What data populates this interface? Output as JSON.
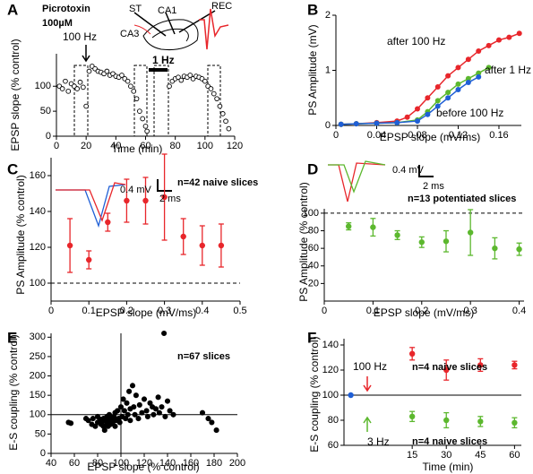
{
  "chart_data": [
    {
      "type": "scatter",
      "label": "A",
      "xlabel": "Time (min)",
      "ylabel": "EPSP slope (% control)",
      "annotations": [
        "Picrotoxin",
        "100µM",
        "100 Hz",
        "1 Hz",
        "ST",
        "CA1",
        "CA3",
        "REC"
      ],
      "xlim": [
        0,
        120
      ],
      "ylim": [
        0,
        165
      ],
      "xticks": [
        0,
        20,
        40,
        60,
        80,
        100,
        120
      ],
      "yticks": [
        0,
        50,
        100
      ],
      "filled": false,
      "series": [
        {
          "color": "#000000",
          "x": [
            2,
            4,
            6,
            8,
            10,
            12,
            14,
            16,
            18,
            20,
            22,
            24,
            26,
            28,
            30,
            32,
            34,
            36,
            38,
            40,
            42,
            44,
            46,
            48,
            50,
            52,
            54,
            56,
            58,
            60,
            61,
            76,
            78,
            80,
            82,
            84,
            86,
            88,
            90,
            92,
            94,
            96,
            98,
            100,
            102,
            104,
            106,
            108,
            110,
            112,
            114,
            116
          ],
          "values": [
            100,
            95,
            110,
            90,
            105,
            100,
            95,
            108,
            98,
            60,
            130,
            140,
            135,
            130,
            128,
            125,
            130,
            122,
            125,
            120,
            118,
            122,
            115,
            110,
            100,
            90,
            75,
            50,
            35,
            20,
            10,
            100,
            110,
            115,
            118,
            112,
            120,
            118,
            122,
            115,
            120,
            118,
            115,
            110,
            100,
            95,
            85,
            75,
            60,
            45,
            30,
            15
          ]
        }
      ]
    },
    {
      "type": "line",
      "label": "B",
      "xlabel": "EPSP slope (mV/ms)",
      "ylabel": "PS Amplitude (mV)",
      "xlim": [
        0,
        0.182
      ],
      "ylim": [
        0,
        2
      ],
      "xticks": [
        0,
        0.04,
        0.08,
        0.12,
        0.16
      ],
      "yticks": [
        0,
        1,
        2
      ],
      "series": [
        {
          "name": "after 100 Hz",
          "color": "#e8262b",
          "x": [
            0.005,
            0.02,
            0.04,
            0.06,
            0.07,
            0.08,
            0.09,
            0.1,
            0.11,
            0.12,
            0.13,
            0.14,
            0.15,
            0.16,
            0.17,
            0.18
          ],
          "values": [
            0.02,
            0.03,
            0.05,
            0.08,
            0.15,
            0.3,
            0.5,
            0.7,
            0.9,
            1.05,
            1.2,
            1.35,
            1.45,
            1.55,
            1.6,
            1.67
          ]
        },
        {
          "name": "after 1 Hz",
          "color": "#5cb82e",
          "x": [
            0.005,
            0.02,
            0.04,
            0.06,
            0.08,
            0.09,
            0.1,
            0.11,
            0.12,
            0.13,
            0.14,
            0.15
          ],
          "values": [
            0.02,
            0.03,
            0.04,
            0.05,
            0.1,
            0.25,
            0.45,
            0.6,
            0.75,
            0.85,
            0.95,
            1.05
          ]
        },
        {
          "name": "before 100 Hz",
          "color": "#1f5fd6",
          "x": [
            0.005,
            0.02,
            0.04,
            0.06,
            0.08,
            0.09,
            0.1,
            0.11,
            0.12,
            0.13,
            0.14
          ],
          "values": [
            0.02,
            0.03,
            0.04,
            0.05,
            0.08,
            0.2,
            0.35,
            0.5,
            0.65,
            0.78,
            0.88
          ]
        }
      ]
    },
    {
      "type": "errorbar",
      "label": "C",
      "xlabel": "EPSP slope (mV/ms)",
      "ylabel": "PS Amplitude (% control)",
      "annotations": [
        "0.4 mV",
        "2 ms",
        "n=42 naive slices"
      ],
      "xlim": [
        0,
        0.5
      ],
      "ylim": [
        90,
        170
      ],
      "xticks": [
        0,
        0.1,
        0.2,
        0.3,
        0.4,
        0.5
      ],
      "yticks": [
        100,
        120,
        140,
        160
      ],
      "hlines": [
        100
      ],
      "hline_dashed": true,
      "series": [
        {
          "color": "#e8262b",
          "x": [
            0.05,
            0.1,
            0.15,
            0.2,
            0.25,
            0.3,
            0.35,
            0.4,
            0.45
          ],
          "values": [
            121,
            113,
            134,
            146,
            146,
            148,
            126,
            121,
            121
          ],
          "errors": [
            15,
            5,
            5,
            12,
            13,
            24,
            10,
            11,
            12
          ]
        }
      ]
    },
    {
      "type": "errorbar",
      "label": "D",
      "xlabel": "EPSP slope (mV/ms)",
      "ylabel": "PS Amplitude (% control)",
      "annotations": [
        "0.4 mV",
        "2 ms",
        "n=13 potentiated slices"
      ],
      "xlim": [
        0,
        0.41
      ],
      "ylim": [
        0,
        105
      ],
      "xticks": [
        0,
        0.1,
        0.2,
        0.3,
        0.4
      ],
      "yticks": [
        20,
        40,
        60,
        80,
        100
      ],
      "hlines": [
        100
      ],
      "hline_dashed": true,
      "series": [
        {
          "color": "#5cb82e",
          "x": [
            0.05,
            0.1,
            0.15,
            0.2,
            0.25,
            0.3,
            0.35,
            0.4
          ],
          "values": [
            85,
            84,
            75,
            67,
            68,
            78,
            60,
            59
          ],
          "errors": [
            4,
            10,
            5,
            6,
            12,
            26,
            12,
            7
          ]
        }
      ]
    },
    {
      "type": "scatter",
      "label": "E",
      "xlabel": "EPSP slope (% control)",
      "ylabel": "E-S coupling (% control)",
      "annotations": [
        "n=67 slices"
      ],
      "xlim": [
        40,
        200
      ],
      "ylim": [
        0,
        310
      ],
      "xticks": [
        40,
        60,
        80,
        100,
        120,
        140,
        160,
        180,
        200
      ],
      "yticks": [
        0,
        50,
        100,
        150,
        200,
        250,
        300
      ],
      "hlines": [
        100
      ],
      "vlines": [
        100
      ],
      "filled": true,
      "series": [
        {
          "color": "#000000",
          "x": [
            55,
            57,
            70,
            72,
            75,
            76,
            78,
            80,
            80,
            82,
            83,
            84,
            85,
            85,
            86,
            87,
            88,
            88,
            89,
            90,
            90,
            91,
            92,
            93,
            94,
            95,
            95,
            96,
            97,
            98,
            99,
            100,
            101,
            102,
            103,
            104,
            105,
            106,
            107,
            108,
            108,
            110,
            111,
            112,
            113,
            115,
            116,
            118,
            120,
            122,
            123,
            125,
            127,
            128,
            130,
            132,
            133,
            135,
            137,
            138,
            140,
            142,
            145,
            170,
            175,
            178,
            182
          ],
          "values": [
            80,
            78,
            90,
            85,
            75,
            90,
            70,
            80,
            95,
            88,
            75,
            82,
            70,
            90,
            60,
            85,
            78,
            95,
            70,
            85,
            100,
            75,
            90,
            80,
            95,
            70,
            105,
            85,
            110,
            90,
            80,
            120,
            95,
            140,
            110,
            90,
            130,
            100,
            160,
            115,
            85,
            175,
            120,
            100,
            150,
            90,
            125,
            105,
            140,
            110,
            95,
            130,
            120,
            100,
            115,
            145,
            105,
            120,
            310,
            95,
            135,
            110,
            100,
            105,
            90,
            80,
            60
          ]
        }
      ]
    },
    {
      "type": "errorbar",
      "label": "F",
      "xlabel": "Time (min)",
      "ylabel": "E-S coupling (% control)",
      "annotations": [
        "n=4 naive slices",
        "n=4 naive slices"
      ],
      "xlim": [
        -15,
        63
      ],
      "ylim": [
        60,
        145
      ],
      "xticks": [
        15,
        30,
        45,
        60
      ],
      "yticks": [
        60,
        80,
        100,
        120,
        140
      ],
      "hlines": [
        100
      ],
      "series": [
        {
          "name": "100 Hz",
          "color": "#e8262b",
          "x": [
            15,
            30,
            45,
            60
          ],
          "values": [
            133,
            120,
            124,
            124
          ],
          "errors": [
            5,
            8,
            5,
            3
          ]
        },
        {
          "name": "3 Hz",
          "color": "#5cb82e",
          "x": [
            15,
            30,
            45,
            60
          ],
          "values": [
            83,
            80,
            79,
            78
          ],
          "errors": [
            4,
            6,
            4,
            4
          ]
        },
        {
          "color": "#1f5fd6",
          "x": [
            -12
          ],
          "values": [
            100
          ]
        }
      ]
    }
  ]
}
